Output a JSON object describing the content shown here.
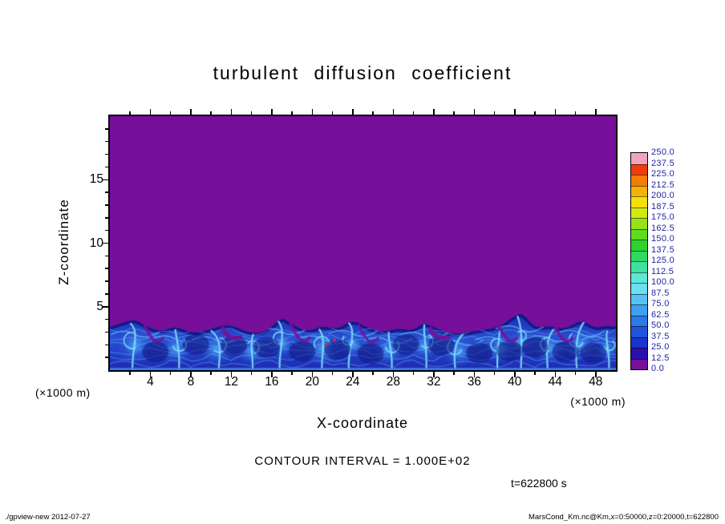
{
  "figure": {
    "title": "turbulent diffusion coefficient",
    "x_axis": {
      "label": "X-coordinate",
      "units": "(×1000 m)"
    },
    "y_axis": {
      "label": "Z-coordinate",
      "units": "(×1000 m)"
    },
    "annotations": {
      "contour_interval": "CONTOUR INTERVAL = 1.000E+02",
      "time": "t=622800 s"
    },
    "footer": {
      "left": "./gpview-new  2012-07-27",
      "right": "MarsCond_Km.nc@Km,x=0:50000,z=0:20000,t=622800"
    }
  },
  "chart_data": {
    "type": "heatmap",
    "title": "turbulent diffusion coefficient",
    "xlabel": "X-coordinate (×1000 m)",
    "ylabel": "Z-coordinate (×1000 m)",
    "xlim": [
      0,
      50
    ],
    "ylim": [
      0,
      20
    ],
    "x_ticks": [
      4,
      8,
      12,
      16,
      20,
      24,
      28,
      32,
      36,
      40,
      44,
      48
    ],
    "y_ticks": [
      5,
      10,
      15
    ],
    "x_minor_step": 2,
    "y_minor_step": 1,
    "grid": false,
    "contour_interval": 100.0,
    "time_s": 622800,
    "colorbar": {
      "position": "right",
      "levels": [
        0.0,
        12.5,
        25.0,
        37.5,
        50.0,
        62.5,
        75.0,
        87.5,
        100.0,
        112.5,
        125.0,
        137.5,
        150.0,
        162.5,
        175.0,
        187.5,
        200.0,
        212.5,
        225.0,
        237.5,
        250.0
      ],
      "colors": [
        "#770f9b",
        "#2a10b0",
        "#1c33cc",
        "#1f55dd",
        "#2b7ae8",
        "#3fa0f0",
        "#55c2f4",
        "#6cdef5",
        "#5ce9d4",
        "#40e19e",
        "#2eda62",
        "#2dd32d",
        "#5edc20",
        "#98e318",
        "#d0ea10",
        "#f6df0a",
        "#f6b108",
        "#f37d06",
        "#ee3d0a",
        "#f4a2c2"
      ],
      "label_color": "#2121a8"
    },
    "colors": {
      "background": "#770f9b",
      "layer_deep": "#1c2ab2",
      "layer_mid": "#2950d2",
      "plume_body": "#4696f0",
      "filament": "#82e4fa",
      "dark_core": "#10147e",
      "surface_band": "#3c82ea",
      "speck": "#c72565"
    },
    "field": {
      "description": "Turbulent diffusion coefficient Km: near-zero (purple, < 12.5) everywhere above the convective boundary layer; turbulent mixed layer below z ~ 3-4 km with Km ~ 25-150 in blue/cyan plumes and filaments.",
      "background_value": 0.0,
      "mixed_layer_typical_value": 50.0,
      "mixed_layer_peak_value": 150.0,
      "layer_top_profile": [
        [
          0,
          3.4
        ],
        [
          1.5,
          3.8
        ],
        [
          2.5,
          4.0
        ],
        [
          3.5,
          3.5
        ],
        [
          5,
          3.0
        ],
        [
          6.5,
          3.5
        ],
        [
          8,
          2.9
        ],
        [
          9.5,
          3.1
        ],
        [
          10.5,
          3.4
        ],
        [
          12,
          3.6
        ],
        [
          13.5,
          3.0
        ],
        [
          15,
          2.9
        ],
        [
          16,
          3.4
        ],
        [
          17,
          4.2
        ],
        [
          18,
          3.6
        ],
        [
          19.5,
          3.0
        ],
        [
          21,
          3.5
        ],
        [
          22.5,
          3.2
        ],
        [
          24,
          4.0
        ],
        [
          25.5,
          3.3
        ],
        [
          27,
          3.0
        ],
        [
          28.5,
          3.3
        ],
        [
          30,
          3.1
        ],
        [
          31,
          3.8
        ],
        [
          32.5,
          3.2
        ],
        [
          34,
          2.8
        ],
        [
          35.5,
          3.0
        ],
        [
          37,
          3.2
        ],
        [
          38.5,
          3.4
        ],
        [
          40,
          4.3
        ],
        [
          40.8,
          4.5
        ],
        [
          42,
          3.3
        ],
        [
          43.5,
          3.5
        ],
        [
          45,
          3.2
        ],
        [
          46.5,
          4.0
        ],
        [
          48,
          3.3
        ],
        [
          49,
          3.5
        ],
        [
          50,
          3.4
        ]
      ],
      "plumes": [
        {
          "x": 2.5,
          "h": 3.9,
          "w": 1.8
        },
        {
          "x": 6.5,
          "h": 3.4,
          "w": 1.5
        },
        {
          "x": 10.5,
          "h": 3.3,
          "w": 1.6
        },
        {
          "x": 14.0,
          "h": 3.0,
          "w": 1.4
        },
        {
          "x": 17.0,
          "h": 4.2,
          "w": 1.3
        },
        {
          "x": 21.0,
          "h": 3.4,
          "w": 1.7
        },
        {
          "x": 24.0,
          "h": 4.0,
          "w": 1.2
        },
        {
          "x": 27.5,
          "h": 3.2,
          "w": 1.5
        },
        {
          "x": 31.0,
          "h": 3.8,
          "w": 1.4
        },
        {
          "x": 34.5,
          "h": 3.0,
          "w": 1.6
        },
        {
          "x": 38.5,
          "h": 3.3,
          "w": 1.4
        },
        {
          "x": 40.5,
          "h": 4.5,
          "w": 1.1
        },
        {
          "x": 43.5,
          "h": 3.4,
          "w": 1.5
        },
        {
          "x": 46.5,
          "h": 4.0,
          "w": 1.6
        },
        {
          "x": 49.0,
          "h": 3.3,
          "w": 1.2
        }
      ],
      "specks": [
        [
          21.4,
          2.0
        ],
        [
          22.2,
          2.4
        ]
      ]
    }
  }
}
